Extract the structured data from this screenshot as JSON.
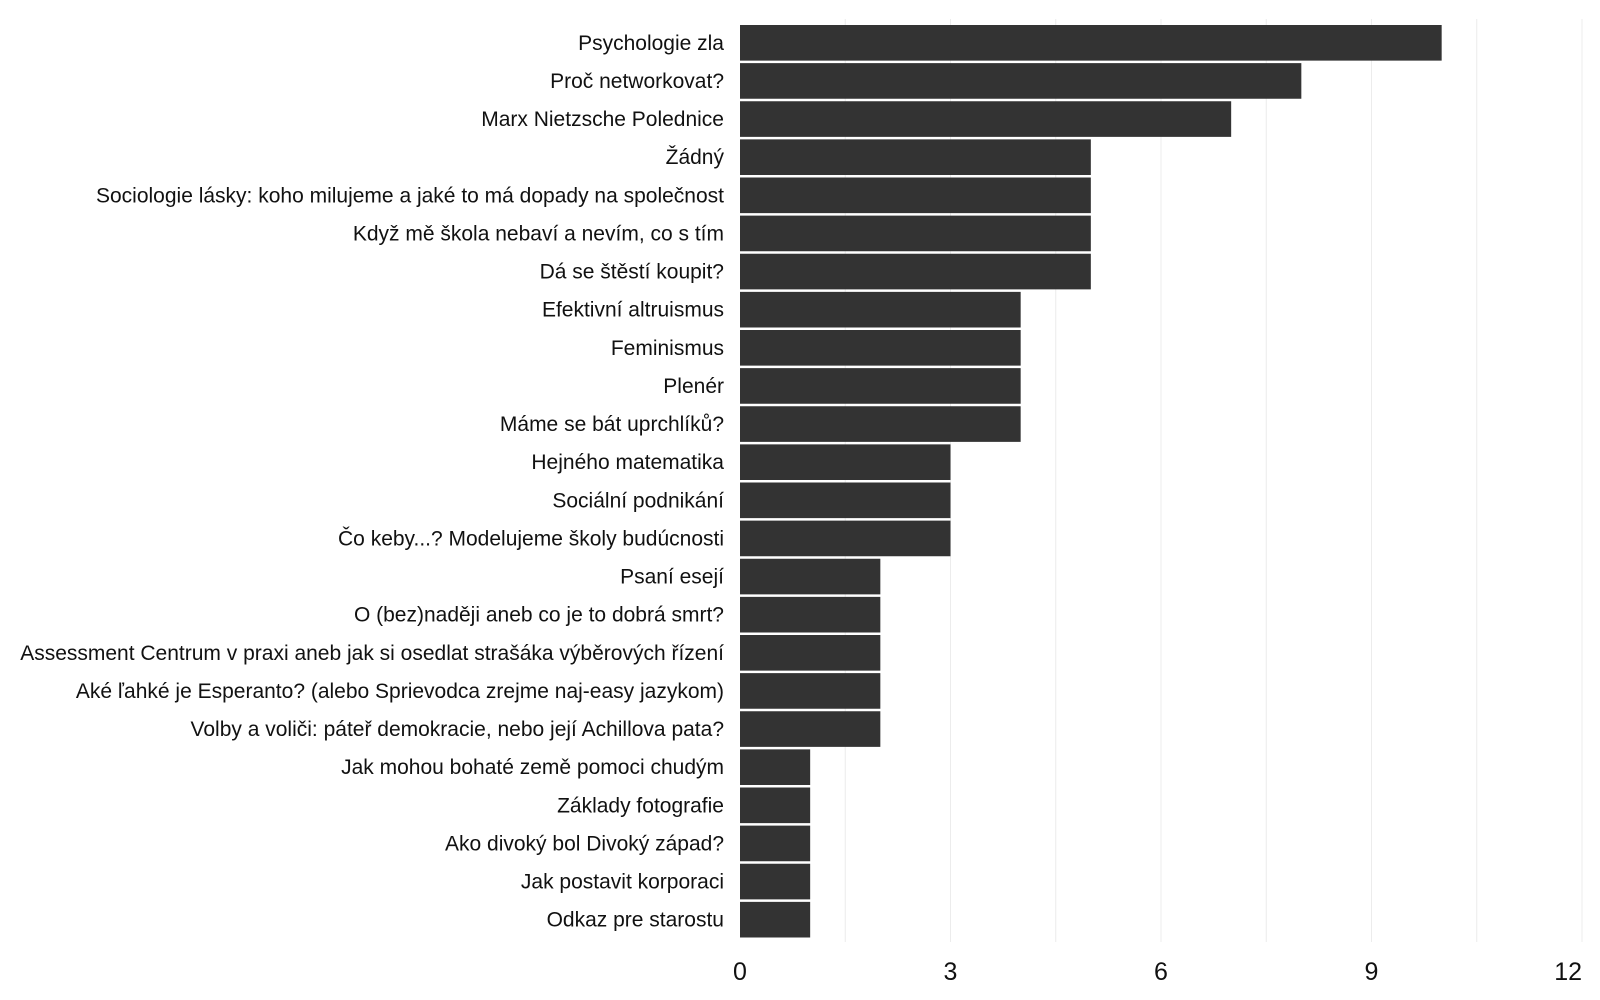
{
  "chart_data": {
    "type": "bar",
    "orientation": "horizontal",
    "categories": [
      "Psychologie zla",
      "Proč networkovat?",
      "Marx Nietzsche Polednice",
      "Žádný",
      "Sociologie lásky: koho milujeme a jaké to má dopady na společnost",
      "Když mě škola nebaví a nevím, co s tím",
      "Dá se štěstí koupit?",
      "Efektivní altruismus",
      "Feminismus",
      "Plenér",
      "Máme se bát uprchlíků?",
      "Hejného matematika",
      "Sociální podnikání",
      "Čo keby...? Modelujeme školy budúcnosti",
      "Psaní esejí",
      "O (bez)naději aneb co je to dobrá smrt?",
      "Assessment Centrum v praxi aneb jak si osedlat strašáka výběrových řízení",
      "Aké ľahké je Esperanto? (alebo Sprievodca zrejme naj-easy jazykom)",
      "Volby a voliči: páteř demokracie, nebo její Achillova pata?",
      "Jak mohou bohaté země pomoci chudým",
      "Základy fotografie",
      "Ako divoký bol Divoký západ?",
      "Jak postavit korporaci",
      "Odkaz pre starostu"
    ],
    "values": [
      10,
      8,
      7,
      5,
      5,
      5,
      5,
      4,
      4,
      4,
      4,
      3,
      3,
      3,
      2,
      2,
      2,
      2,
      2,
      1,
      1,
      1,
      1,
      1
    ],
    "xlim": [
      0,
      12
    ],
    "xticks": [
      0,
      3,
      6,
      9,
      12
    ],
    "grid": "vertical",
    "legend": "none",
    "bar_color": "#333333",
    "grid_color": "#ececec",
    "title": "",
    "xlabel": "",
    "ylabel": ""
  }
}
